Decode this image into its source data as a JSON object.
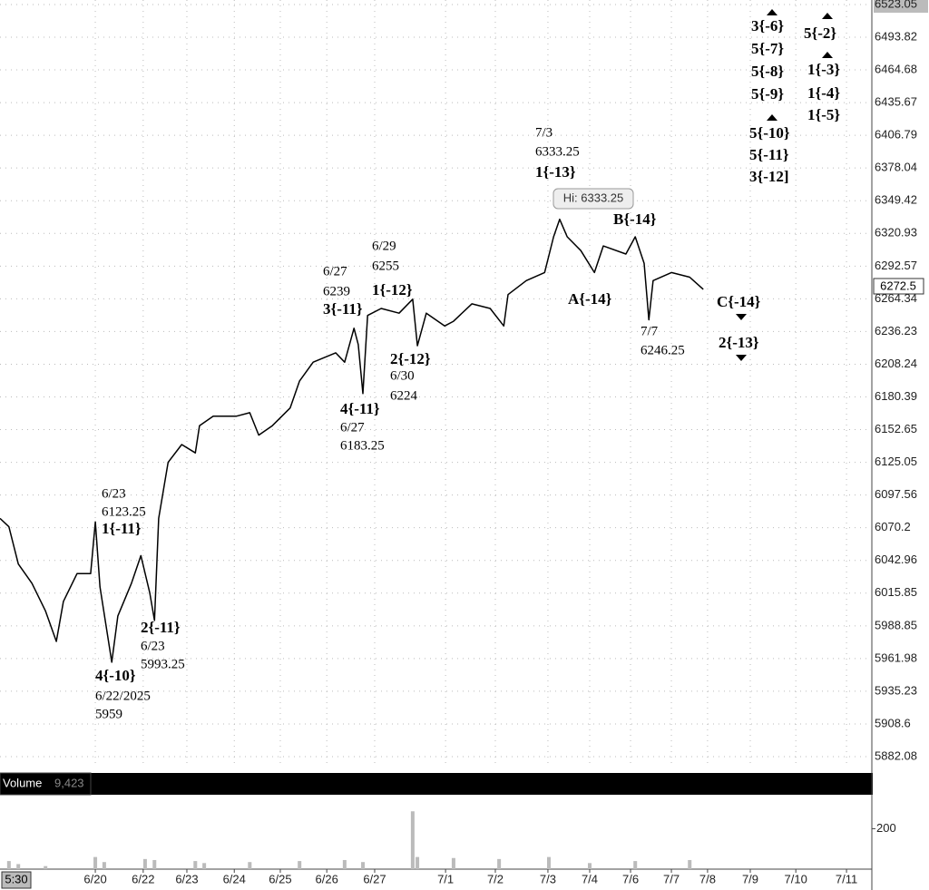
{
  "chart_data": {
    "type": "line",
    "color": "#000000",
    "log": true,
    "grid": true,
    "xlim": [
      -2.03,
      16.52
    ],
    "xticks": [
      {
        "value": 0,
        "label": "6/20"
      },
      {
        "value": 1.02,
        "label": "6/22"
      },
      {
        "value": 1.95,
        "label": "6/23"
      },
      {
        "value": 2.96,
        "label": "6/24"
      },
      {
        "value": 3.94,
        "label": "6/25"
      },
      {
        "value": 4.93,
        "label": "6/26"
      },
      {
        "value": 5.95,
        "label": "6/27"
      },
      {
        "value": 7.46,
        "label": "7/1"
      },
      {
        "value": 8.52,
        "label": "7/2"
      },
      {
        "value": 9.64,
        "label": "7/3"
      },
      {
        "value": 10.53,
        "label": "7/4"
      },
      {
        "value": 11.4,
        "label": "7/6"
      },
      {
        "value": 12.27,
        "label": "7/7"
      },
      {
        "value": 13.04,
        "label": "7/8"
      },
      {
        "value": 13.95,
        "label": "7/9"
      },
      {
        "value": 14.92,
        "label": "7/10"
      },
      {
        "value": 16,
        "label": "7/11"
      }
    ],
    "ylim": [
      5882.08,
      6523.05
    ],
    "yticks": [
      6523.05,
      6493.82,
      6464.68,
      6435.67,
      6406.79,
      6378.04,
      6349.42,
      6320.93,
      6292.57,
      6264.34,
      6236.23,
      6208.24,
      6180.39,
      6152.65,
      6125.05,
      6097.56,
      6070.2,
      6042.96,
      6015.85,
      5988.85,
      5961.98,
      5935.23,
      5908.6,
      5882.08
    ],
    "x": [
      -2.03,
      -1.84,
      -1.64,
      -1.35,
      -1.06,
      -0.83,
      -0.68,
      -0.39,
      -0.1,
      0,
      0.1,
      0.35,
      0.48,
      0.77,
      0.97,
      1.16,
      1.26,
      1.35,
      1.55,
      1.84,
      2.13,
      2.22,
      2.51,
      3.0,
      3.29,
      3.48,
      3.77,
      4.15,
      4.35,
      4.64,
      5.12,
      5.31,
      5.51,
      5.6,
      5.7,
      5.8,
      6.09,
      6.47,
      6.76,
      6.86,
      7.05,
      7.44,
      7.63,
      8.02,
      8.41,
      8.7,
      8.79,
      9.18,
      9.57,
      9.76,
      9.89,
      10.05,
      10.34,
      10.63,
      10.82,
      11.3,
      11.5,
      11.69,
      11.79,
      11.88,
      12.27,
      12.66,
      12.95
    ],
    "values": [
      6078,
      6071,
      6040,
      6024,
      6001,
      5976,
      6009,
      6032,
      6032,
      6075,
      6021,
      5959,
      5997,
      6024,
      6047,
      6016,
      5993.25,
      6078,
      6125,
      6140,
      6133,
      6156,
      6164,
      6164,
      6167,
      6148,
      6156,
      6171,
      6194,
      6210,
      6218,
      6210,
      6239,
      6225,
      6183.25,
      6250,
      6256,
      6252,
      6264,
      6224,
      6252,
      6241,
      6245,
      6260,
      6256,
      6241,
      6268,
      6280,
      6287,
      6318,
      6333.25,
      6318,
      6306,
      6287,
      6310,
      6303,
      6318,
      6295,
      6246.25,
      6280,
      6287,
      6283,
      6272.5
    ],
    "hi_label": "Hi: 6333.25",
    "last_label": "6272.5",
    "time_label": "5:30",
    "annotations": [
      [
        "7/3",
        "6333.25",
        "1{-13}"
      ],
      [
        "6/29",
        "6255",
        "1{-12}"
      ],
      [
        "6/27",
        "6239",
        "3{-11}"
      ],
      [
        "2{-12}",
        "6/30",
        "6224"
      ],
      [
        "4{-11}",
        "6/27",
        "6183.25"
      ],
      [
        "6/23",
        "6123.25",
        "1{-11}"
      ],
      [
        "2{-11}",
        "6/23",
        "5993.25"
      ],
      [
        "4{-10}",
        "6/22/2025",
        "5959"
      ],
      [
        "B{-14}"
      ],
      [
        "A{-14}"
      ],
      [
        "7/7",
        "6246.25"
      ],
      [
        "C{-14}"
      ],
      [
        "2{-13}"
      ],
      [
        "3{-6}",
        "5{-7}",
        "5{-8}",
        "5{-9}"
      ],
      [
        "5{-10}",
        "5{-11}",
        "3{-12]"
      ],
      [
        "5{-2}"
      ],
      [
        "1{-3}",
        "1{-4}",
        "1{-5}"
      ]
    ],
    "volume": {
      "title": "Volume",
      "value_label": "9,423",
      "color": "#bbbbbb",
      "ylim": [
        0,
        350
      ],
      "yticks": [
        200
      ],
      "x": [
        -1.84,
        -1.64,
        -1.06,
        0,
        0.19,
        1.06,
        1.26,
        2.13,
        2.32,
        3.29,
        4.35,
        5.31,
        5.7,
        6.76,
        6.86,
        7.63,
        8.6,
        9.66,
        10.53,
        11.5,
        12.66
      ],
      "values": [
        40,
        25,
        15,
        60,
        35,
        50,
        45,
        40,
        30,
        35,
        40,
        45,
        35,
        286,
        60,
        55,
        50,
        60,
        30,
        40,
        45
      ]
    }
  }
}
